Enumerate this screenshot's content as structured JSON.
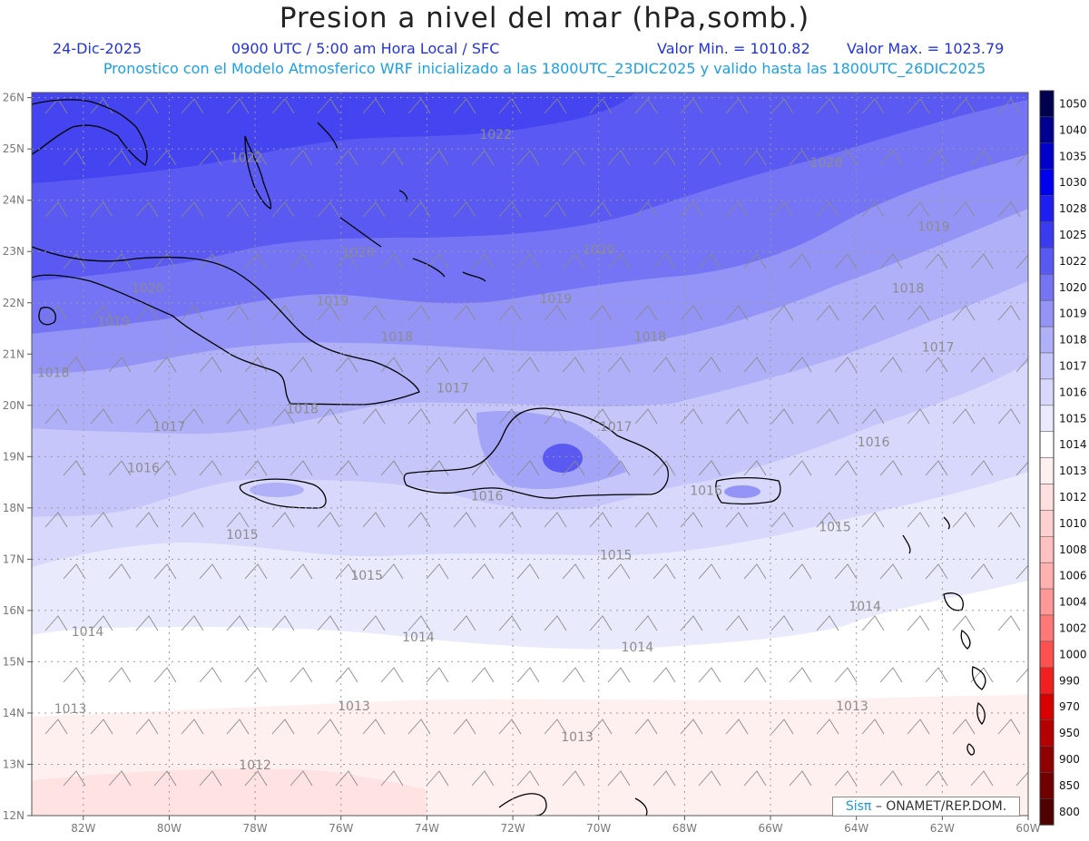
{
  "title": "Presion a nivel del mar (hPa,somb.)",
  "header": {
    "date": "24-Dic-2025",
    "time": "0900 UTC / 5:00 am Hora Local / SFC",
    "valmin": "Valor Min. = 1010.82",
    "valmax": "Valor Max. = 1023.79",
    "model": "Pronostico con el Modelo Atmosferico WRF inicializado a las 1800UTC_23DIC2025 y valido hasta las  1800UTC_26DIC2025"
  },
  "axes": {
    "lon_labels": [
      "82W",
      "80W",
      "78W",
      "76W",
      "74W",
      "72W",
      "70W",
      "68W",
      "66W",
      "64W",
      "62W",
      "60W"
    ],
    "lat_labels": [
      "26N",
      "25N",
      "24N",
      "23N",
      "22N",
      "21N",
      "20N",
      "19N",
      "18N",
      "17N",
      "16N",
      "15N",
      "14N",
      "13N",
      "12N"
    ]
  },
  "colorbar": {
    "levels": [
      "1050",
      "1040",
      "1035",
      "1030",
      "1028",
      "1025",
      "1022",
      "1020",
      "1019",
      "1018",
      "1017",
      "1016",
      "1015",
      "1014",
      "1013",
      "1012",
      "1010",
      "1008",
      "1006",
      "1004",
      "1002",
      "1000",
      "990",
      "970",
      "950",
      "900",
      "850",
      "800"
    ],
    "colors": [
      "#00004f",
      "#000090",
      "#0000c8",
      "#0000f0",
      "#1e1ef0",
      "#3a3af0",
      "#5858f2",
      "#7474f4",
      "#9494f6",
      "#b0b0f8",
      "#c6c6fa",
      "#d8d8fc",
      "#eaeafd",
      "#ffffff",
      "#fff0f0",
      "#ffe0e0",
      "#ffd0d0",
      "#ffc0c0",
      "#ffb0b0",
      "#ff9898",
      "#ff7878",
      "#ff5050",
      "#f02020",
      "#d80000",
      "#b40000",
      "#900000",
      "#700000",
      "#500000"
    ]
  },
  "map_labels": [
    {
      "text": "1022",
      "lon": -72.4,
      "lat": 25.2
    },
    {
      "text": "1022",
      "lon": -78.2,
      "lat": 24.75
    },
    {
      "text": "1020",
      "lon": -64.7,
      "lat": 24.65
    },
    {
      "text": "1019",
      "lon": -62.2,
      "lat": 23.4
    },
    {
      "text": "1020",
      "lon": -75.6,
      "lat": 22.9
    },
    {
      "text": "1020",
      "lon": -70.0,
      "lat": 22.95
    },
    {
      "text": "1020",
      "lon": -80.5,
      "lat": 22.2
    },
    {
      "text": "1018",
      "lon": -62.8,
      "lat": 22.2
    },
    {
      "text": "1019",
      "lon": -76.2,
      "lat": 21.95
    },
    {
      "text": "1019",
      "lon": -71.0,
      "lat": 22.0
    },
    {
      "text": "1019",
      "lon": -81.3,
      "lat": 21.55
    },
    {
      "text": "1018",
      "lon": -74.7,
      "lat": 21.25
    },
    {
      "text": "1018",
      "lon": -68.8,
      "lat": 21.25
    },
    {
      "text": "1017",
      "lon": -62.1,
      "lat": 21.05
    },
    {
      "text": "1018",
      "lon": -82.7,
      "lat": 20.55
    },
    {
      "text": "1017",
      "lon": -73.4,
      "lat": 20.25
    },
    {
      "text": "1018",
      "lon": -76.9,
      "lat": 19.85
    },
    {
      "text": "1017",
      "lon": -80.0,
      "lat": 19.5
    },
    {
      "text": "1017",
      "lon": -69.6,
      "lat": 19.5
    },
    {
      "text": "1016",
      "lon": -63.6,
      "lat": 19.2
    },
    {
      "text": "1016",
      "lon": -80.6,
      "lat": 18.7
    },
    {
      "text": "1016",
      "lon": -72.6,
      "lat": 18.15
    },
    {
      "text": "1016",
      "lon": -67.5,
      "lat": 18.25
    },
    {
      "text": "1015",
      "lon": -78.3,
      "lat": 17.4
    },
    {
      "text": "1015",
      "lon": -64.5,
      "lat": 17.55
    },
    {
      "text": "1015",
      "lon": -69.6,
      "lat": 17.0
    },
    {
      "text": "1015",
      "lon": -75.4,
      "lat": 16.6
    },
    {
      "text": "1014",
      "lon": -63.8,
      "lat": 16.0
    },
    {
      "text": "1014",
      "lon": -81.9,
      "lat": 15.5
    },
    {
      "text": "1014",
      "lon": -74.2,
      "lat": 15.4
    },
    {
      "text": "1014",
      "lon": -69.1,
      "lat": 15.2
    },
    {
      "text": "1013",
      "lon": -82.3,
      "lat": 14.0
    },
    {
      "text": "1013",
      "lon": -75.7,
      "lat": 14.05
    },
    {
      "text": "1013",
      "lon": -64.1,
      "lat": 14.05
    },
    {
      "text": "1013",
      "lon": -70.5,
      "lat": 13.45
    },
    {
      "text": "1012",
      "lon": -78.0,
      "lat": 12.9
    }
  ],
  "credit": {
    "logo": "Sisπ",
    "text": "– ONAMET/REP.DOM."
  }
}
